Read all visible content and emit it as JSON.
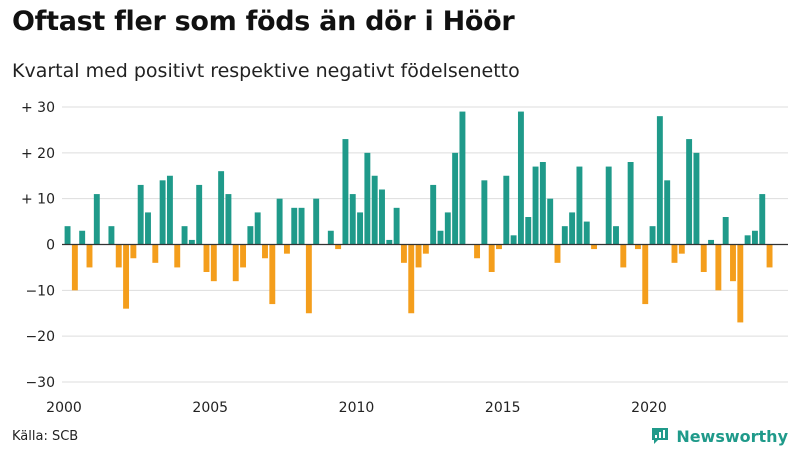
{
  "header": {
    "title": "Oftast fler som föds än dör i Höör",
    "subtitle": "Kvartal med positivt respektive negativt födelsenetto"
  },
  "footer": {
    "source": "Källa: SCB",
    "brand": "Newsworthy"
  },
  "colors": {
    "positive": "#1f9a8a",
    "negative": "#f49e1c",
    "grid": "#dddddd",
    "axis": "#333333",
    "brand": "#1f9a8a"
  },
  "chart_data": {
    "type": "bar",
    "title": "Oftast fler som föds än dör i Höör",
    "subtitle": "Kvartal med positivt respektive negativt födelsenetto",
    "xlabel": "",
    "ylabel": "",
    "ylim": [
      -30,
      30
    ],
    "yticks": [
      30,
      20,
      10,
      0,
      -10,
      -20,
      -30
    ],
    "ytick_labels": [
      "+ 30",
      "+ 20",
      "+ 10",
      "0",
      "−10",
      "−20",
      "−30"
    ],
    "xticks": [
      2000,
      2005,
      2010,
      2015,
      2020
    ],
    "xtick_labels": [
      "2000",
      "2005",
      "2010",
      "2015",
      "2020"
    ],
    "start_year": 2000,
    "periods_per_year": 4,
    "grid": true,
    "series": [
      {
        "name": "Födelsenetto per kvartal",
        "values": [
          4,
          -10,
          3,
          -5,
          11,
          0,
          4,
          -5,
          -14,
          -3,
          13,
          7,
          -4,
          14,
          15,
          -5,
          4,
          1,
          13,
          -6,
          -8,
          16,
          11,
          -8,
          -5,
          4,
          7,
          -3,
          -13,
          10,
          -2,
          8,
          8,
          -15,
          10,
          0,
          3,
          -1,
          23,
          11,
          7,
          20,
          15,
          12,
          1,
          8,
          -4,
          -15,
          -5,
          -2,
          13,
          3,
          7,
          20,
          29,
          0,
          -3,
          14,
          -6,
          -1,
          15,
          2,
          29,
          6,
          17,
          18,
          10,
          -4,
          4,
          7,
          17,
          5,
          -1,
          0,
          17,
          4,
          -5,
          18,
          -1,
          -13,
          4,
          28,
          14,
          -4,
          -2,
          23,
          20,
          -6,
          1,
          -10,
          6,
          -8,
          -17,
          2,
          3,
          11,
          -5
        ]
      }
    ]
  }
}
